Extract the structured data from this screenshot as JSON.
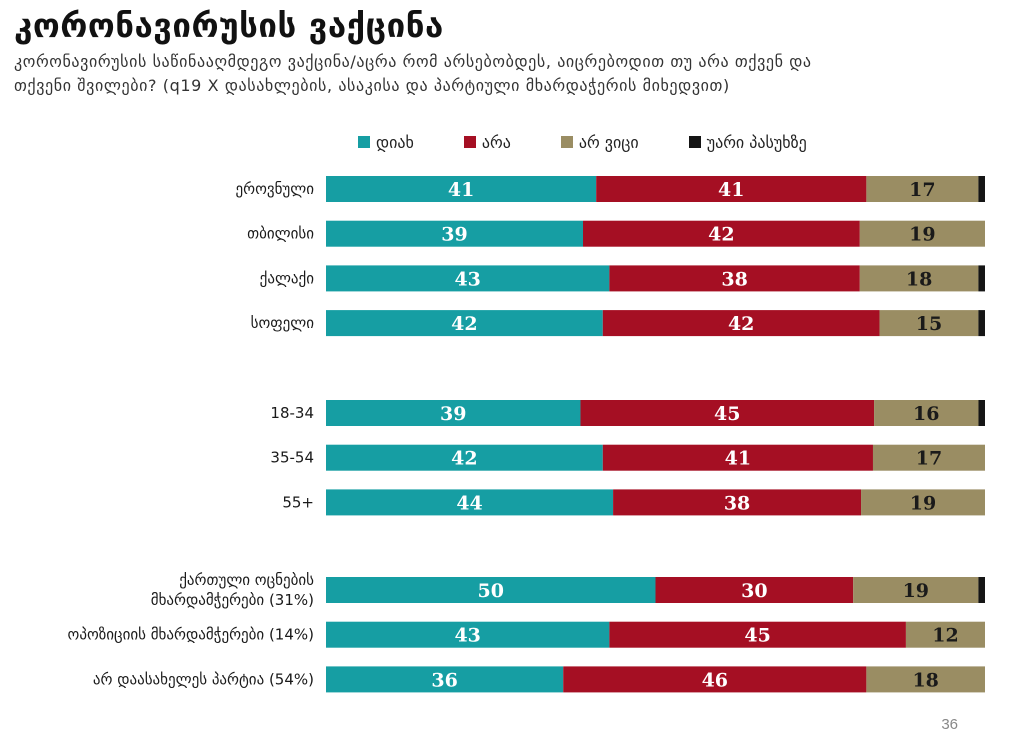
{
  "title": "კორონავირუსის ვაქცინა",
  "subtitle": "კორონავირუსის საწინააღმდეგო ვაქცინა/აცრა რომ არსებობდეს, აიცრებოდით თუ არა თქვენ და თქვენი შვილები? (q19 X დასახლების, ასაკისა და პარტიული მხარდაჭერის მიხედვით)",
  "page_number": "36",
  "legend": [
    {
      "label": "დიახ",
      "color": "#169ea3"
    },
    {
      "label": "არა",
      "color": "#a50f23"
    },
    {
      "label": "არ ვიცი",
      "color": "#9a8d63"
    },
    {
      "label": "უარი პასუხზე",
      "color": "#151515"
    }
  ],
  "chart_data": {
    "type": "bar",
    "orientation": "horizontal",
    "stacked": true,
    "xlim": [
      0,
      100
    ],
    "groups": [
      {
        "rows": [
          {
            "category": "ეროვნული",
            "values": [
              41,
              41,
              17,
              1
            ]
          },
          {
            "category": "თბილისი",
            "values": [
              39,
              42,
              19,
              0
            ]
          },
          {
            "category": "ქალაქი",
            "values": [
              43,
              38,
              18,
              1
            ]
          },
          {
            "category": "სოფელი",
            "values": [
              42,
              42,
              15,
              1
            ]
          }
        ]
      },
      {
        "rows": [
          {
            "category": "18-34",
            "values": [
              39,
              45,
              16,
              1
            ]
          },
          {
            "category": "35-54",
            "values": [
              42,
              41,
              17,
              0
            ]
          },
          {
            "category": "55+",
            "values": [
              44,
              38,
              19,
              0
            ]
          }
        ]
      },
      {
        "rows": [
          {
            "category": "ქართული ოცნების მხარდამჭერები (31%)",
            "category_lines": [
              "ქართული ოცნების",
              "მხარდამჭერები (31%)"
            ],
            "values": [
              50,
              30,
              19,
              1
            ]
          },
          {
            "category": "ოპოზიციის მხარდამჭერები (14%)",
            "values": [
              43,
              45,
              12,
              0
            ]
          },
          {
            "category": "არ დაასახელეს პარტია (54%)",
            "values": [
              36,
              46,
              18,
              0
            ]
          }
        ]
      }
    ],
    "series": [
      {
        "name": "დიახ",
        "color": "#169ea3",
        "label_color": "#ffffff"
      },
      {
        "name": "არა",
        "color": "#a50f23",
        "label_color": "#ffffff"
      },
      {
        "name": "არ ვიცი",
        "color": "#9a8d63",
        "label_color": "#1a1a1a"
      },
      {
        "name": "უარი პასუხზე",
        "color": "#151515",
        "label_color": "#ffffff"
      }
    ]
  }
}
